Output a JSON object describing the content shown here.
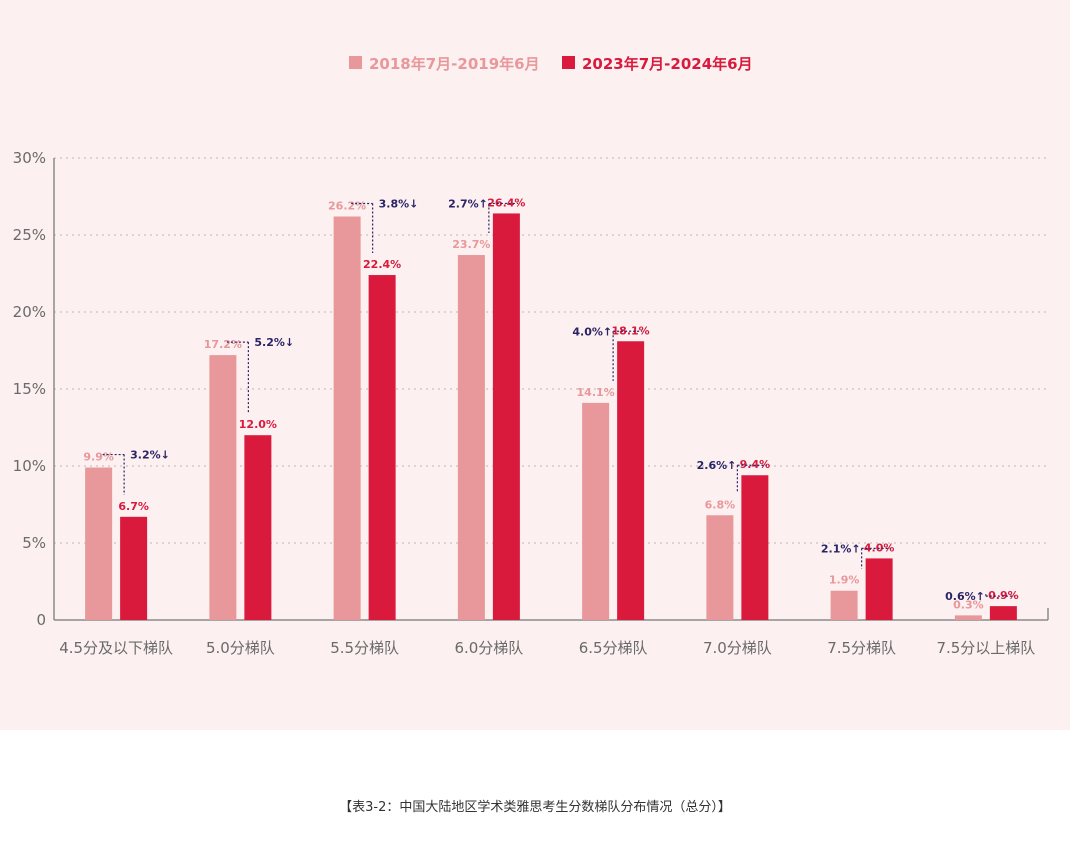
{
  "chart_data": {
    "type": "bar",
    "categories": [
      "4.5分及以下梯队",
      "5.0分梯队",
      "5.5分梯队",
      "6.0分梯队",
      "6.5分梯队",
      "7.0分梯队",
      "7.5分梯队",
      "7.5分以上梯队"
    ],
    "series": [
      {
        "name": "2018年7月-2019年6月",
        "values": [
          9.9,
          17.2,
          26.2,
          23.7,
          14.1,
          6.8,
          1.9,
          0.3
        ],
        "labels": [
          "9.9%",
          "17.2%",
          "26.2%",
          "23.7%",
          "14.1%",
          "6.8%",
          "1.9%",
          "0.3%"
        ],
        "color": "#e8989a"
      },
      {
        "name": "2023年7月-2024年6月",
        "values": [
          6.7,
          12.0,
          22.4,
          26.4,
          18.1,
          9.4,
          4.0,
          0.9
        ],
        "labels": [
          "6.7%",
          "12.0%",
          "22.4%",
          "26.4%",
          "18.1%",
          "9.4%",
          "4.0%",
          "0.9%"
        ],
        "color": "#d91a3c"
      }
    ],
    "changes": [
      "3.2%↓",
      "5.2%↓",
      "3.8%↓",
      "2.7%↑",
      "4.0%↑",
      "2.6%↑",
      "2.1%↑",
      "0.6%↑"
    ],
    "change_color": "#2a2466",
    "ylim": [
      0,
      30
    ],
    "yticks": [
      0,
      5,
      10,
      15,
      20,
      25,
      30
    ],
    "yticklabels": [
      "0",
      "5%",
      "10%",
      "15%",
      "20%",
      "25%",
      "30%"
    ],
    "grid": true,
    "legend_position": "top-center",
    "title": "",
    "xlabel": "",
    "ylabel": ""
  },
  "caption": "【表3-2：中国大陆地区学术类雅思考生分数梯队分布情况（总分）】"
}
